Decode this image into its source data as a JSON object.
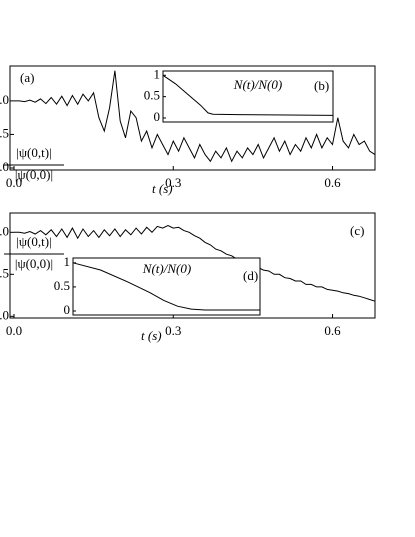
{
  "chart_data": [
    {
      "type": "line",
      "panel_label": "(a)",
      "xlabel": "t (s)",
      "ylabel_numerator": "|ψ(0,t)|",
      "ylabel_denominator": "|ψ(0,0)|",
      "x": [
        0,
        0.01,
        0.02,
        0.03,
        0.04,
        0.05,
        0.06,
        0.07,
        0.08,
        0.09,
        0.1,
        0.11,
        0.12,
        0.13,
        0.14,
        0.15,
        0.16,
        0.17,
        0.18,
        0.19,
        0.2,
        0.21,
        0.22,
        0.23,
        0.24,
        0.25,
        0.26,
        0.27,
        0.28,
        0.29,
        0.3,
        0.31,
        0.32,
        0.33,
        0.34,
        0.35,
        0.36,
        0.37,
        0.38,
        0.39,
        0.4,
        0.41,
        0.42,
        0.43,
        0.44,
        0.45,
        0.46,
        0.47,
        0.48,
        0.49,
        0.5,
        0.51,
        0.52,
        0.53,
        0.54,
        0.55,
        0.56,
        0.57,
        0.58,
        0.59,
        0.6,
        0.61,
        0.62,
        0.63,
        0.64,
        0.65,
        0.66,
        0.67,
        0.68
      ],
      "series": [
        {
          "color": "#000000",
          "values": [
            1.0,
            1.0,
            0.99,
            1.01,
            0.98,
            1.03,
            0.96,
            1.05,
            0.95,
            1.07,
            0.93,
            1.08,
            0.95,
            1.1,
            1.0,
            1.12,
            0.75,
            0.55,
            0.9,
            1.45,
            0.7,
            0.45,
            0.85,
            0.75,
            0.4,
            0.55,
            0.3,
            0.5,
            0.35,
            0.2,
            0.4,
            0.25,
            0.45,
            0.3,
            0.15,
            0.35,
            0.2,
            0.1,
            0.25,
            0.15,
            0.3,
            0.1,
            0.25,
            0.15,
            0.3,
            0.2,
            0.35,
            0.15,
            0.3,
            0.45,
            0.25,
            0.4,
            0.2,
            0.35,
            0.25,
            0.45,
            0.3,
            0.5,
            0.3,
            0.45,
            0.35,
            0.75,
            0.4,
            0.3,
            0.5,
            0.35,
            0.4,
            0.25,
            0.2
          ]
        }
      ],
      "xlim": [
        0,
        0.68
      ],
      "ylim": [
        -0.03,
        1.52
      ],
      "xticks": [
        {
          "value": 0,
          "label": "0.0"
        },
        0.3,
        0.6
      ],
      "yticks": [
        {
          "value": 1,
          "label": "1.0"
        },
        {
          "value": 0.5,
          "label": "0.5"
        },
        {
          "value": 0,
          "label": "0.0"
        }
      ],
      "inset": {
        "title": "N(t)/N(0)",
        "panel_label": "(b)",
        "x": [
          0,
          0.05,
          0.1,
          0.15,
          0.18,
          0.2,
          0.3,
          0.5,
          0.68
        ],
        "values": [
          1,
          0.8,
          0.55,
          0.3,
          0.12,
          0.09,
          0.08,
          0.07,
          0.06
        ],
        "xlim": [
          0,
          0.68
        ],
        "ylim": [
          0,
          1.1
        ],
        "yticks": [
          0,
          0.5,
          1
        ]
      }
    },
    {
      "type": "line",
      "panel_label": "(c)",
      "xlabel": "t (s)",
      "ylabel_numerator": "|ψ(0,t)|",
      "ylabel_denominator": "|ψ(0,0)|",
      "x": [
        0,
        0.01,
        0.02,
        0.03,
        0.04,
        0.05,
        0.06,
        0.07,
        0.08,
        0.09,
        0.1,
        0.11,
        0.12,
        0.13,
        0.14,
        0.15,
        0.16,
        0.17,
        0.18,
        0.19,
        0.2,
        0.21,
        0.22,
        0.23,
        0.24,
        0.25,
        0.26,
        0.27,
        0.28,
        0.29,
        0.3,
        0.31,
        0.32,
        0.33,
        0.34,
        0.35,
        0.36,
        0.37,
        0.38,
        0.39,
        0.4,
        0.41,
        0.42,
        0.43,
        0.44,
        0.45,
        0.46,
        0.47,
        0.48,
        0.49,
        0.5,
        0.51,
        0.52,
        0.53,
        0.54,
        0.55,
        0.56,
        0.57,
        0.58,
        0.59,
        0.6,
        0.61,
        0.62,
        0.63,
        0.64,
        0.65,
        0.66,
        0.67,
        0.68
      ],
      "series": [
        {
          "color": "#000000",
          "values": [
            1.0,
            1.0,
            0.99,
            1.01,
            0.98,
            1.02,
            0.97,
            1.03,
            0.95,
            1.04,
            0.94,
            1.05,
            0.93,
            1.04,
            0.95,
            1.02,
            0.94,
            1.03,
            0.96,
            1.04,
            0.95,
            1.03,
            0.97,
            1.05,
            0.98,
            1.06,
            1.0,
            1.07,
            1.05,
            1.08,
            1.05,
            1.06,
            1.02,
            1.0,
            0.96,
            0.93,
            0.88,
            0.85,
            0.8,
            0.78,
            0.74,
            0.72,
            0.68,
            0.66,
            0.62,
            0.6,
            0.58,
            0.55,
            0.54,
            0.5,
            0.5,
            0.46,
            0.45,
            0.42,
            0.42,
            0.38,
            0.38,
            0.35,
            0.35,
            0.32,
            0.31,
            0.3,
            0.28,
            0.27,
            0.25,
            0.24,
            0.22,
            0.2,
            0.18
          ]
        }
      ],
      "xlim": [
        0,
        0.68
      ],
      "ylim": [
        -0.02,
        1.23
      ],
      "xticks": [
        {
          "value": 0,
          "label": "0.0"
        },
        0.3,
        0.6
      ],
      "yticks": [
        {
          "value": 1,
          "label": "1.0"
        },
        {
          "value": 0.5,
          "label": "0.5"
        },
        {
          "value": 0,
          "label": "0.0"
        }
      ],
      "inset": {
        "title": "N(t)/N(0)",
        "panel_label": "(d)",
        "x": [
          0,
          0.1,
          0.2,
          0.28,
          0.33,
          0.38,
          0.43,
          0.48,
          0.68
        ],
        "values": [
          1,
          0.85,
          0.6,
          0.38,
          0.22,
          0.1,
          0.04,
          0.02,
          0.02
        ],
        "xlim": [
          0,
          0.68
        ],
        "ylim": [
          0,
          1.1
        ],
        "yticks": [
          0,
          0.5,
          1
        ]
      }
    }
  ]
}
